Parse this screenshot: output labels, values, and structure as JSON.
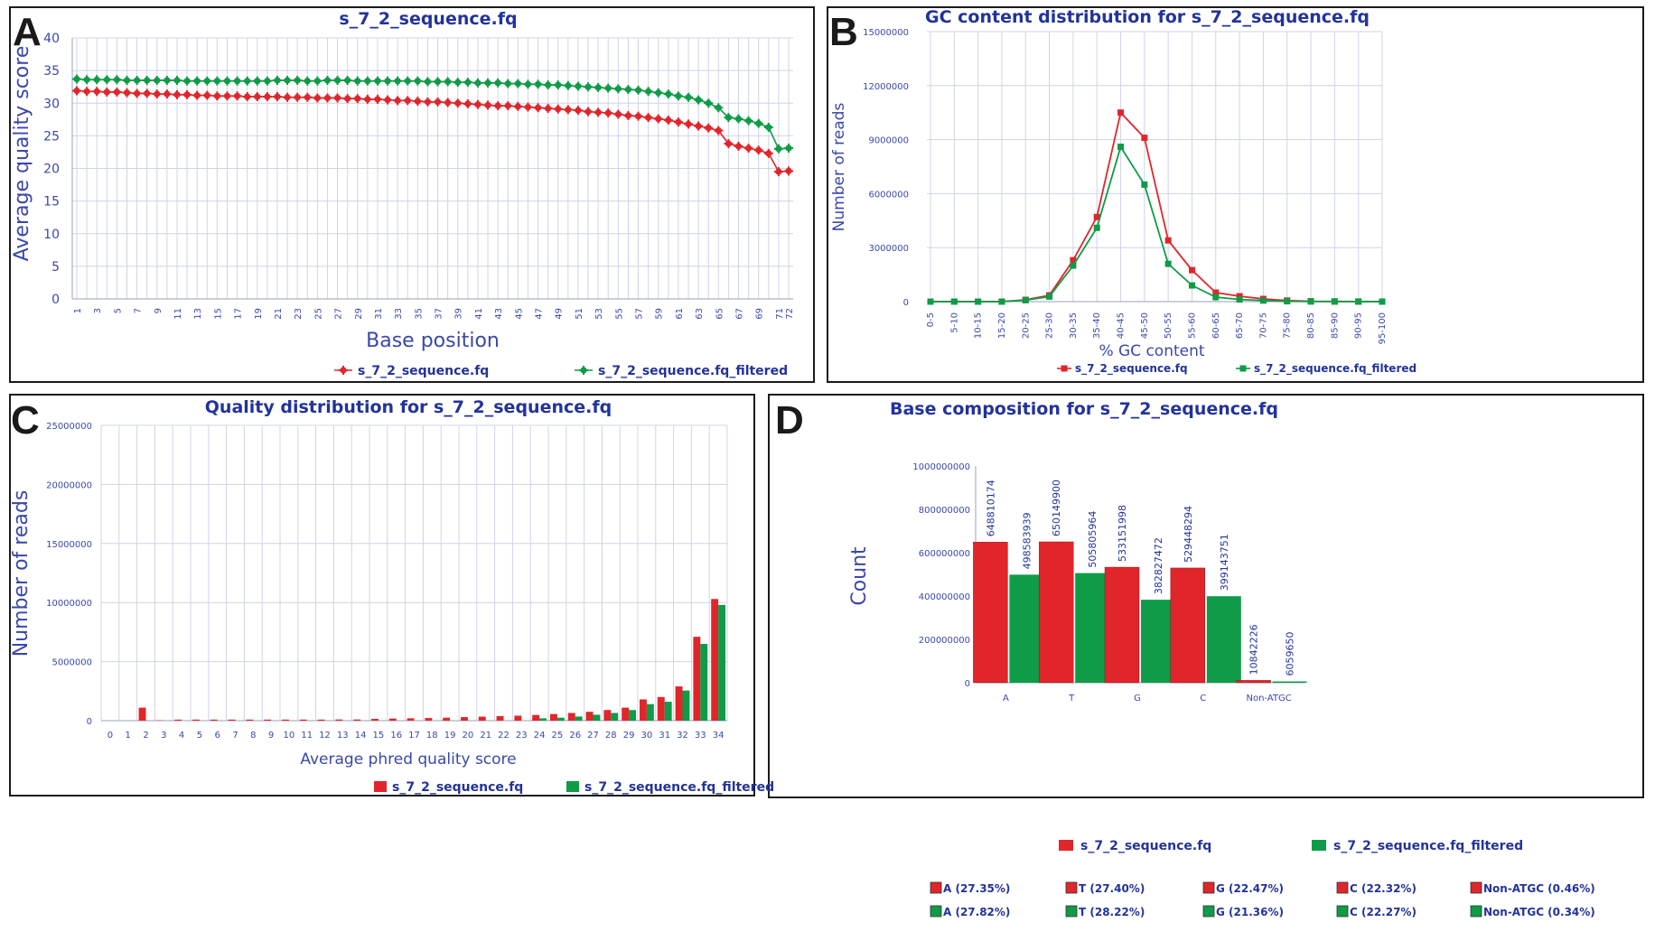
{
  "colors": {
    "raw": "#e0262b",
    "filtered": "#0f9b47",
    "text": "#22339a"
  },
  "panels": {
    "a": {
      "letter": "A",
      "chart_data": {
        "type": "line",
        "title": "s_7_2_sequence.fq",
        "xlabel": "Base position",
        "ylabel": "Average quality score",
        "x_tick_labels": [
          "1",
          "3",
          "5",
          "7",
          "9",
          "11",
          "13",
          "15",
          "17",
          "19",
          "21",
          "23",
          "25",
          "27",
          "29",
          "31",
          "33",
          "35",
          "37",
          "39",
          "41",
          "43",
          "45",
          "47",
          "49",
          "51",
          "53",
          "55",
          "57",
          "59",
          "61",
          "63",
          "65",
          "67",
          "69",
          "71",
          "72"
        ],
        "ylim": [
          0,
          40
        ],
        "y_ticks": [
          0,
          5,
          10,
          15,
          20,
          25,
          30,
          35,
          40
        ],
        "grid": true,
        "legend_position": "bottom",
        "x": [
          1,
          2,
          3,
          4,
          5,
          6,
          7,
          8,
          9,
          10,
          11,
          12,
          13,
          14,
          15,
          16,
          17,
          18,
          19,
          20,
          21,
          22,
          23,
          24,
          25,
          26,
          27,
          28,
          29,
          30,
          31,
          32,
          33,
          34,
          35,
          36,
          37,
          38,
          39,
          40,
          41,
          42,
          43,
          44,
          45,
          46,
          47,
          48,
          49,
          50,
          51,
          52,
          53,
          54,
          55,
          56,
          57,
          58,
          59,
          60,
          61,
          62,
          63,
          64,
          65,
          66,
          67,
          68,
          69,
          70,
          71,
          72
        ],
        "series": [
          {
            "name": "s_7_2_sequence.fq",
            "values": [
              31.9,
              31.8,
              31.8,
              31.7,
              31.7,
              31.6,
              31.5,
              31.5,
              31.4,
              31.4,
              31.3,
              31.3,
              31.2,
              31.2,
              31.1,
              31.1,
              31.1,
              31.0,
              31.0,
              31.0,
              31.0,
              30.9,
              30.9,
              30.9,
              30.8,
              30.8,
              30.8,
              30.7,
              30.7,
              30.6,
              30.6,
              30.5,
              30.4,
              30.4,
              30.3,
              30.2,
              30.2,
              30.1,
              30.0,
              29.9,
              29.8,
              29.7,
              29.6,
              29.6,
              29.5,
              29.4,
              29.3,
              29.2,
              29.1,
              29.0,
              28.9,
              28.7,
              28.6,
              28.5,
              28.3,
              28.1,
              28.0,
              27.8,
              27.6,
              27.4,
              27.1,
              26.8,
              26.5,
              26.2,
              25.8,
              23.8,
              23.4,
              23.1,
              22.8,
              22.3,
              19.5,
              19.6
            ]
          },
          {
            "name": "s_7_2_sequence.fq_filtered",
            "values": [
              33.7,
              33.6,
              33.6,
              33.6,
              33.6,
              33.5,
              33.5,
              33.5,
              33.5,
              33.5,
              33.5,
              33.4,
              33.4,
              33.4,
              33.4,
              33.4,
              33.4,
              33.4,
              33.4,
              33.4,
              33.5,
              33.5,
              33.5,
              33.4,
              33.4,
              33.5,
              33.5,
              33.5,
              33.4,
              33.4,
              33.4,
              33.4,
              33.4,
              33.4,
              33.4,
              33.3,
              33.3,
              33.3,
              33.2,
              33.2,
              33.1,
              33.1,
              33.1,
              33.0,
              33.0,
              32.9,
              32.9,
              32.8,
              32.8,
              32.7,
              32.6,
              32.5,
              32.4,
              32.3,
              32.2,
              32.1,
              32.0,
              31.8,
              31.6,
              31.4,
              31.1,
              30.9,
              30.5,
              30.0,
              29.3,
              27.8,
              27.6,
              27.3,
              26.9,
              26.3,
              23.0,
              23.1
            ]
          }
        ]
      }
    },
    "b": {
      "letter": "B",
      "chart_data": {
        "type": "line",
        "title": "GC content distribution for s_7_2_sequence.fq",
        "xlabel": "% GC content",
        "ylabel": "Number of reads",
        "categories": [
          "0-5",
          "5-10",
          "10-15",
          "15-20",
          "20-25",
          "25-30",
          "30-35",
          "35-40",
          "40-45",
          "45-50",
          "50-55",
          "55-60",
          "60-65",
          "65-70",
          "70-75",
          "75-80",
          "80-85",
          "85-90",
          "90-95",
          "95-100"
        ],
        "y_tick_labels": [
          "0",
          "3000000",
          "6000000",
          "9000000",
          "12000000",
          "15000000"
        ],
        "ylim": [
          0,
          15000000
        ],
        "grid": true,
        "legend_position": "bottom",
        "series": [
          {
            "name": "s_7_2_sequence.fq",
            "values": [
              0,
              0,
              0,
              0,
              100000,
              350000,
              2300000,
              4700000,
              10500000,
              9100000,
              3400000,
              1750000,
              500000,
              300000,
              150000,
              60000,
              20000,
              10000,
              5000,
              0
            ]
          },
          {
            "name": "s_7_2_sequence.fq_filtered",
            "values": [
              0,
              0,
              0,
              0,
              80000,
              280000,
              2000000,
              4100000,
              8600000,
              6500000,
              2100000,
              900000,
              250000,
              120000,
              60000,
              20000,
              8000,
              5000,
              3000,
              0
            ]
          }
        ]
      }
    },
    "c": {
      "letter": "C",
      "chart_data": {
        "type": "bar",
        "title": "Quality distribution for s_7_2_sequence.fq",
        "xlabel": "Average phred quality score",
        "ylabel": "Number of reads",
        "categories": [
          "0",
          "1",
          "2",
          "3",
          "4",
          "5",
          "6",
          "7",
          "8",
          "9",
          "10",
          "11",
          "12",
          "13",
          "14",
          "15",
          "16",
          "17",
          "18",
          "19",
          "20",
          "21",
          "22",
          "23",
          "24",
          "25",
          "26",
          "27",
          "28",
          "29",
          "30",
          "31",
          "32",
          "33",
          "34"
        ],
        "y_tick_labels": [
          "0",
          "5000000",
          "10000000",
          "15000000",
          "20000000",
          "25000000"
        ],
        "ylim": [
          0,
          25000000
        ],
        "grid": true,
        "legend_position": "bottom",
        "series": [
          {
            "name": "s_7_2_sequence.fq",
            "values": [
              0,
              0,
              1100000,
              30000,
              90000,
              90000,
              90000,
              90000,
              90000,
              90000,
              90000,
              90000,
              90000,
              100000,
              100000,
              150000,
              180000,
              200000,
              220000,
              250000,
              300000,
              340000,
              380000,
              420000,
              480000,
              560000,
              650000,
              750000,
              900000,
              1100000,
              1800000,
              2000000,
              2900000,
              7100000,
              10300000
            ]
          },
          {
            "name": "s_7_2_sequence.fq_filtered",
            "values": [
              0,
              0,
              0,
              0,
              0,
              0,
              0,
              0,
              0,
              0,
              0,
              0,
              0,
              0,
              0,
              0,
              0,
              0,
              0,
              0,
              0,
              0,
              0,
              0,
              200000,
              250000,
              350000,
              500000,
              650000,
              900000,
              1400000,
              1600000,
              2550000,
              6500000,
              9800000
            ]
          }
        ]
      }
    },
    "d": {
      "letter": "D",
      "chart_data": {
        "type": "bar",
        "title": "Base composition for s_7_2_sequence.fq",
        "xlabel": "",
        "ylabel": "Count",
        "categories": [
          "A",
          "T",
          "G",
          "C",
          "Non-ATGC"
        ],
        "y_tick_labels": [
          "0",
          "200000000",
          "400000000",
          "600000000",
          "800000000",
          "1000000000"
        ],
        "ylim": [
          0,
          1000000000
        ],
        "grid": false,
        "legend_position": "bottom",
        "series": [
          {
            "name": "s_7_2_sequence.fq",
            "values": [
              648810174,
              650149900,
              533151998,
              529448294,
              10842226
            ],
            "labels": [
              "648810174",
              "650149900",
              "533151998",
              "529448294",
              "10842226"
            ],
            "percent_legend": [
              "A (27.35%)",
              "T (27.40%)",
              "G (22.47%)",
              "C (22.32%)",
              "Non-ATGC (0.46%)"
            ]
          },
          {
            "name": "s_7_2_sequence.fq_filtered",
            "values": [
              498583939,
              505805964,
              382827472,
              399143751,
              6059650
            ],
            "labels": [
              "498583939",
              "505805964",
              "382827472",
              "399143751",
              "6059650"
            ],
            "percent_legend": [
              "A (27.82%)",
              "T (28.22%)",
              "G (21.36%)",
              "C (22.27%)",
              "Non-ATGC (0.34%)"
            ]
          }
        ]
      }
    }
  }
}
